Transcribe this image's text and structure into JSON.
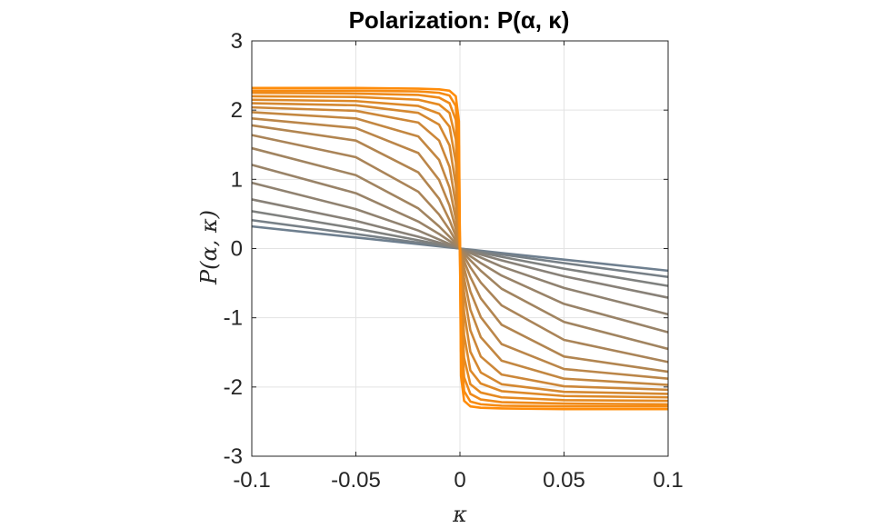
{
  "chart_data": {
    "type": "line",
    "title": "Polarization: P(α, κ)",
    "xlabel": "κ",
    "ylabel": "P(α, κ)",
    "xlim": [
      -0.1,
      0.1
    ],
    "ylim": [
      -3,
      3
    ],
    "xticks": [
      "-0.1",
      "-0.05",
      "0",
      "0.05",
      "0.1"
    ],
    "yticks": [
      "3",
      "2",
      "1",
      "0",
      "-1",
      "-2",
      "-3"
    ],
    "grid": true,
    "colors": {
      "start": "#6e7f8f",
      "end": "#ff8c0a"
    },
    "series": [
      {
        "x": [
          -0.1,
          -0.05,
          -0.02,
          -0.01,
          -0.005,
          -0.002,
          -0.0005,
          0,
          0.0005,
          0.002,
          0.005,
          0.01,
          0.02,
          0.05,
          0.1
        ],
        "values": [
          0.32,
          0.16,
          0.064,
          0.032,
          0.016,
          0.0064,
          0.0016,
          0,
          -0.0016,
          -0.0064,
          -0.016,
          -0.032,
          -0.064,
          -0.16,
          -0.32
        ]
      },
      {
        "x": [
          -0.1,
          -0.05,
          -0.02,
          -0.01,
          -0.005,
          -0.002,
          -0.0005,
          0,
          0.0005,
          0.002,
          0.005,
          0.01,
          0.02,
          0.05,
          0.1
        ],
        "values": [
          0.41,
          0.21,
          0.085,
          0.043,
          0.021,
          0.0085,
          0.0021,
          0,
          -0.0021,
          -0.0085,
          -0.021,
          -0.043,
          -0.085,
          -0.21,
          -0.41
        ]
      },
      {
        "x": [
          -0.1,
          -0.05,
          -0.02,
          -0.01,
          -0.005,
          -0.002,
          -0.0005,
          0,
          0.0005,
          0.002,
          0.005,
          0.01,
          0.02,
          0.05,
          0.1
        ],
        "values": [
          0.54,
          0.29,
          0.12,
          0.06,
          0.03,
          0.012,
          0.003,
          0,
          -0.003,
          -0.012,
          -0.03,
          -0.06,
          -0.12,
          -0.29,
          -0.54
        ]
      },
      {
        "x": [
          -0.1,
          -0.05,
          -0.02,
          -0.01,
          -0.005,
          -0.002,
          -0.0005,
          0,
          0.0005,
          0.002,
          0.005,
          0.01,
          0.02,
          0.05,
          0.1
        ],
        "values": [
          0.71,
          0.4,
          0.17,
          0.087,
          0.044,
          0.018,
          0.0044,
          0,
          -0.0044,
          -0.018,
          -0.044,
          -0.087,
          -0.17,
          -0.4,
          -0.71
        ]
      },
      {
        "x": [
          -0.1,
          -0.05,
          -0.02,
          -0.01,
          -0.005,
          -0.002,
          -0.0005,
          0,
          0.0005,
          0.002,
          0.005,
          0.01,
          0.02,
          0.05,
          0.1
        ],
        "values": [
          0.95,
          0.57,
          0.26,
          0.13,
          0.067,
          0.027,
          0.0068,
          0,
          -0.0068,
          -0.027,
          -0.067,
          -0.13,
          -0.26,
          -0.57,
          -0.95
        ]
      },
      {
        "x": [
          -0.1,
          -0.05,
          -0.02,
          -0.01,
          -0.005,
          -0.002,
          -0.0005,
          0,
          0.0005,
          0.002,
          0.005,
          0.01,
          0.02,
          0.05,
          0.1
        ],
        "values": [
          1.21,
          0.8,
          0.39,
          0.21,
          0.11,
          0.043,
          0.011,
          0,
          -0.011,
          -0.043,
          -0.11,
          -0.21,
          -0.39,
          -0.8,
          -1.21
        ]
      },
      {
        "x": [
          -0.1,
          -0.05,
          -0.02,
          -0.01,
          -0.005,
          -0.002,
          -0.0005,
          0,
          0.0005,
          0.002,
          0.005,
          0.01,
          0.02,
          0.05,
          0.1
        ],
        "values": [
          1.45,
          1.06,
          0.58,
          0.32,
          0.17,
          0.07,
          0.018,
          0,
          -0.018,
          -0.07,
          -0.17,
          -0.32,
          -0.58,
          -1.06,
          -1.45
        ]
      },
      {
        "x": [
          -0.1,
          -0.05,
          -0.02,
          -0.01,
          -0.005,
          -0.002,
          -0.0005,
          0,
          0.0005,
          0.002,
          0.005,
          0.01,
          0.02,
          0.05,
          0.1
        ],
        "values": [
          1.64,
          1.32,
          0.82,
          0.49,
          0.27,
          0.11,
          0.029,
          0,
          -0.029,
          -0.11,
          -0.27,
          -0.49,
          -0.82,
          -1.32,
          -1.64
        ]
      },
      {
        "x": [
          -0.1,
          -0.05,
          -0.02,
          -0.01,
          -0.005,
          -0.002,
          -0.0005,
          0,
          0.0005,
          0.002,
          0.005,
          0.01,
          0.02,
          0.05,
          0.1
        ],
        "values": [
          1.78,
          1.56,
          1.1,
          0.72,
          0.41,
          0.18,
          0.046,
          0,
          -0.046,
          -0.18,
          -0.41,
          -0.72,
          -1.1,
          -1.56,
          -1.78
        ]
      },
      {
        "x": [
          -0.1,
          -0.05,
          -0.02,
          -0.01,
          -0.005,
          -0.002,
          -0.0005,
          0,
          0.0005,
          0.002,
          0.005,
          0.01,
          0.02,
          0.05,
          0.1
        ],
        "values": [
          1.88,
          1.74,
          1.38,
          0.99,
          0.62,
          0.28,
          0.074,
          0,
          -0.074,
          -0.28,
          -0.62,
          -0.99,
          -1.38,
          -1.74,
          -1.88
        ]
      },
      {
        "x": [
          -0.1,
          -0.05,
          -0.02,
          -0.01,
          -0.005,
          -0.002,
          -0.0005,
          0,
          0.0005,
          0.002,
          0.005,
          0.01,
          0.02,
          0.05,
          0.1
        ],
        "values": [
          1.97,
          1.88,
          1.62,
          1.28,
          0.88,
          0.43,
          0.12,
          0,
          -0.12,
          -0.43,
          -0.88,
          -1.28,
          -1.62,
          -1.88,
          -1.97
        ]
      },
      {
        "x": [
          -0.1,
          -0.05,
          -0.02,
          -0.01,
          -0.005,
          -0.002,
          -0.0005,
          0,
          0.0005,
          0.002,
          0.005,
          0.01,
          0.02,
          0.05,
          0.1
        ],
        "values": [
          2.04,
          1.99,
          1.82,
          1.56,
          1.18,
          0.64,
          0.19,
          0,
          -0.19,
          -0.64,
          -1.18,
          -1.56,
          -1.82,
          -1.99,
          -2.04
        ]
      },
      {
        "x": [
          -0.1,
          -0.05,
          -0.02,
          -0.01,
          -0.005,
          -0.002,
          -0.0005,
          0,
          0.0005,
          0.002,
          0.005,
          0.01,
          0.02,
          0.05,
          0.1
        ],
        "values": [
          2.1,
          2.07,
          1.96,
          1.79,
          1.49,
          0.92,
          0.3,
          0,
          -0.3,
          -0.92,
          -1.49,
          -1.79,
          -1.96,
          -2.07,
          -2.1
        ]
      },
      {
        "x": [
          -0.1,
          -0.05,
          -0.02,
          -0.01,
          -0.005,
          -0.002,
          -0.0005,
          0,
          0.0005,
          0.002,
          0.005,
          0.01,
          0.02,
          0.05,
          0.1
        ],
        "values": [
          2.15,
          2.13,
          2.06,
          1.95,
          1.76,
          1.25,
          0.47,
          0,
          -0.47,
          -1.25,
          -1.76,
          -1.95,
          -2.06,
          -2.13,
          -2.15
        ]
      },
      {
        "x": [
          -0.1,
          -0.05,
          -0.02,
          -0.01,
          -0.005,
          -0.002,
          -0.0005,
          0,
          0.0005,
          0.002,
          0.005,
          0.01,
          0.02,
          0.05,
          0.1
        ],
        "values": [
          2.2,
          2.19,
          2.15,
          2.08,
          1.96,
          1.58,
          0.72,
          0,
          -0.72,
          -1.58,
          -1.96,
          -2.08,
          -2.15,
          -2.19,
          -2.2
        ]
      },
      {
        "x": [
          -0.1,
          -0.05,
          -0.02,
          -0.01,
          -0.005,
          -0.002,
          -0.0005,
          0,
          0.0005,
          0.002,
          0.005,
          0.01,
          0.02,
          0.05,
          0.1
        ],
        "values": [
          2.25,
          2.24,
          2.22,
          2.18,
          2.1,
          1.86,
          1.07,
          0,
          -1.07,
          -1.86,
          -2.1,
          -2.18,
          -2.22,
          -2.24,
          -2.25
        ]
      },
      {
        "x": [
          -0.1,
          -0.05,
          -0.02,
          -0.01,
          -0.005,
          -0.002,
          -0.0005,
          0,
          0.0005,
          0.002,
          0.005,
          0.01,
          0.02,
          0.05,
          0.1
        ],
        "values": [
          2.28,
          2.28,
          2.27,
          2.25,
          2.21,
          2.06,
          1.48,
          0,
          -1.48,
          -2.06,
          -2.21,
          -2.25,
          -2.27,
          -2.28,
          -2.28
        ]
      },
      {
        "x": [
          -0.1,
          -0.05,
          -0.02,
          -0.01,
          -0.005,
          -0.002,
          -0.0005,
          0,
          0.0005,
          0.002,
          0.005,
          0.01,
          0.02,
          0.05,
          0.1
        ],
        "values": [
          2.32,
          2.32,
          2.31,
          2.3,
          2.28,
          2.2,
          1.84,
          0,
          -1.84,
          -2.2,
          -2.28,
          -2.3,
          -2.31,
          -2.32,
          -2.32
        ]
      }
    ]
  }
}
